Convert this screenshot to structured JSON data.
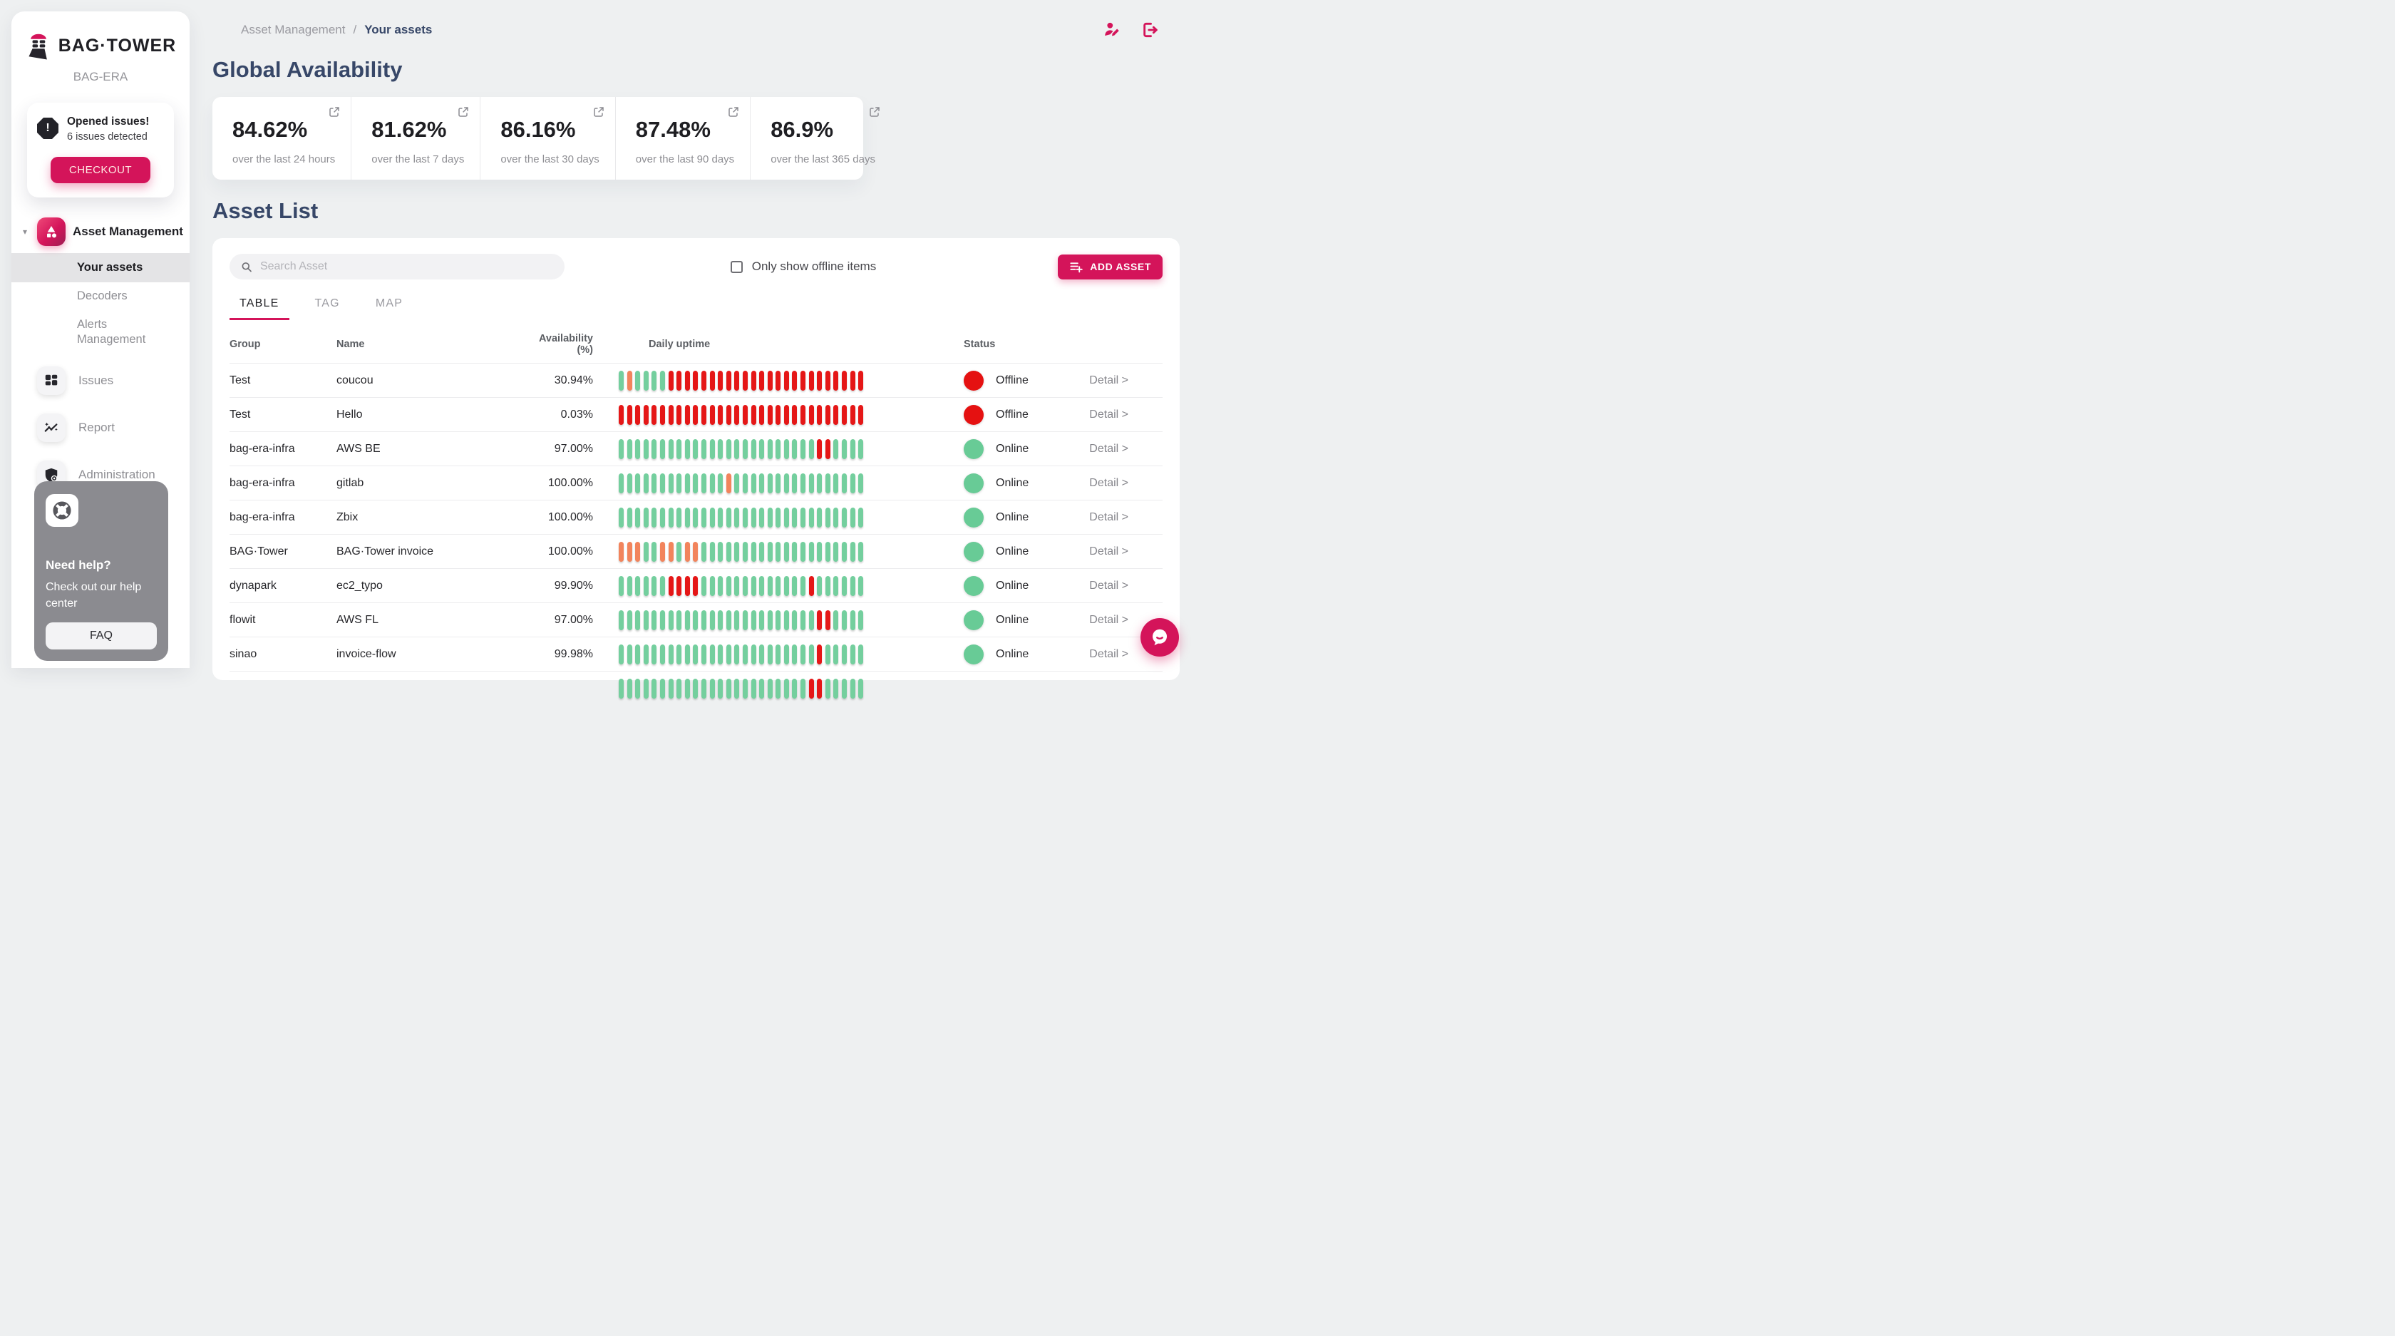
{
  "brand": {
    "name": "BAG·TOWER",
    "org": "BAG-ERA"
  },
  "issues_card": {
    "title": "Opened issues!",
    "subtitle": "6 issues detected",
    "button": "CHECKOUT"
  },
  "sidebar": {
    "nav": [
      {
        "label": "Asset Management",
        "active": true,
        "children": [
          {
            "label": "Your assets",
            "active": true
          },
          {
            "label": "Decoders"
          },
          {
            "label": "Alerts Management"
          }
        ]
      },
      {
        "label": "Issues"
      },
      {
        "label": "Report"
      },
      {
        "label": "Administration"
      }
    ],
    "help": {
      "title": "Need help?",
      "text": "Check out our help center",
      "button": "FAQ"
    }
  },
  "header": {
    "breadcrumb": [
      "Asset Management",
      "Your assets"
    ]
  },
  "availability": {
    "title": "Global Availability",
    "cards": [
      {
        "value": "84.62%",
        "caption": "over the last 24 hours"
      },
      {
        "value": "81.62%",
        "caption": "over the last 7 days"
      },
      {
        "value": "86.16%",
        "caption": "over the last 30 days"
      },
      {
        "value": "87.48%",
        "caption": "over the last 90 days"
      },
      {
        "value": "86.9%",
        "caption": "over the last 365 days"
      }
    ]
  },
  "asset_list": {
    "title": "Asset List",
    "search_placeholder": "Search Asset",
    "filter_label": "Only show offline items",
    "filter_checked": false,
    "add_button": "ADD ASSET",
    "tabs": [
      "TABLE",
      "TAG",
      "MAP"
    ],
    "active_tab": "TABLE",
    "columns": [
      "Group",
      "Name",
      "Availability (%)",
      "Daily uptime",
      "Status"
    ],
    "rows": [
      {
        "group": "Test",
        "name": "coucou",
        "availability": "30.94%",
        "uptime": "goggggrrrrrrrrrrrrrrrrrrrrrrrr",
        "status": "Offline",
        "detail": "Detail >"
      },
      {
        "group": "Test",
        "name": "Hello",
        "availability": "0.03%",
        "uptime": "rrrrrrrrrrrrrrrrrrrrrrrrrrrrrr",
        "status": "Offline",
        "detail": "Detail >"
      },
      {
        "group": "bag-era-infra",
        "name": "AWS BE",
        "availability": "97.00%",
        "uptime": "ggggggggggggggggggggggggrrgggg",
        "status": "Online",
        "detail": "Detail >"
      },
      {
        "group": "bag-era-infra",
        "name": "gitlab",
        "availability": "100.00%",
        "uptime": "gggggggggggggogggggggggggggggg",
        "status": "Online",
        "detail": "Detail >"
      },
      {
        "group": "bag-era-infra",
        "name": "Zbix",
        "availability": "100.00%",
        "uptime": "gggggggggggggggggggggggggggggg",
        "status": "Online",
        "detail": "Detail >"
      },
      {
        "group": "BAG·Tower",
        "name": "BAG·Tower invoice",
        "availability": "100.00%",
        "uptime": "oooggoogoogggggggggggggggggggg",
        "status": "Online",
        "detail": "Detail >"
      },
      {
        "group": "dynapark",
        "name": "ec2_typo",
        "availability": "99.90%",
        "uptime": "ggggggrrrrgggggggggggggrgggggg",
        "status": "Online",
        "detail": "Detail >"
      },
      {
        "group": "flowit",
        "name": "AWS FL",
        "availability": "97.00%",
        "uptime": "ggggggggggggggggggggggggrrgggg",
        "status": "Online",
        "detail": "Detail >"
      },
      {
        "group": "sinao",
        "name": "invoice-flow",
        "availability": "99.98%",
        "uptime": "ggggggggggggggggggggggggrggggg",
        "status": "Online",
        "detail": "Detail >"
      },
      {
        "group": "",
        "name": "",
        "availability": "",
        "uptime": "gggggggggggggggggggggggrrggggg",
        "status": "",
        "detail": ""
      }
    ]
  },
  "icons": {
    "caret": "▾",
    "alert": "!"
  },
  "colors": {
    "accent": "#d4145a",
    "navy": "#374768",
    "uptime_green": "#74cf9e",
    "uptime_orange": "#f2845c",
    "uptime_red": "#e51717",
    "status_online": "#68cb96",
    "status_offline": "#e51111"
  }
}
